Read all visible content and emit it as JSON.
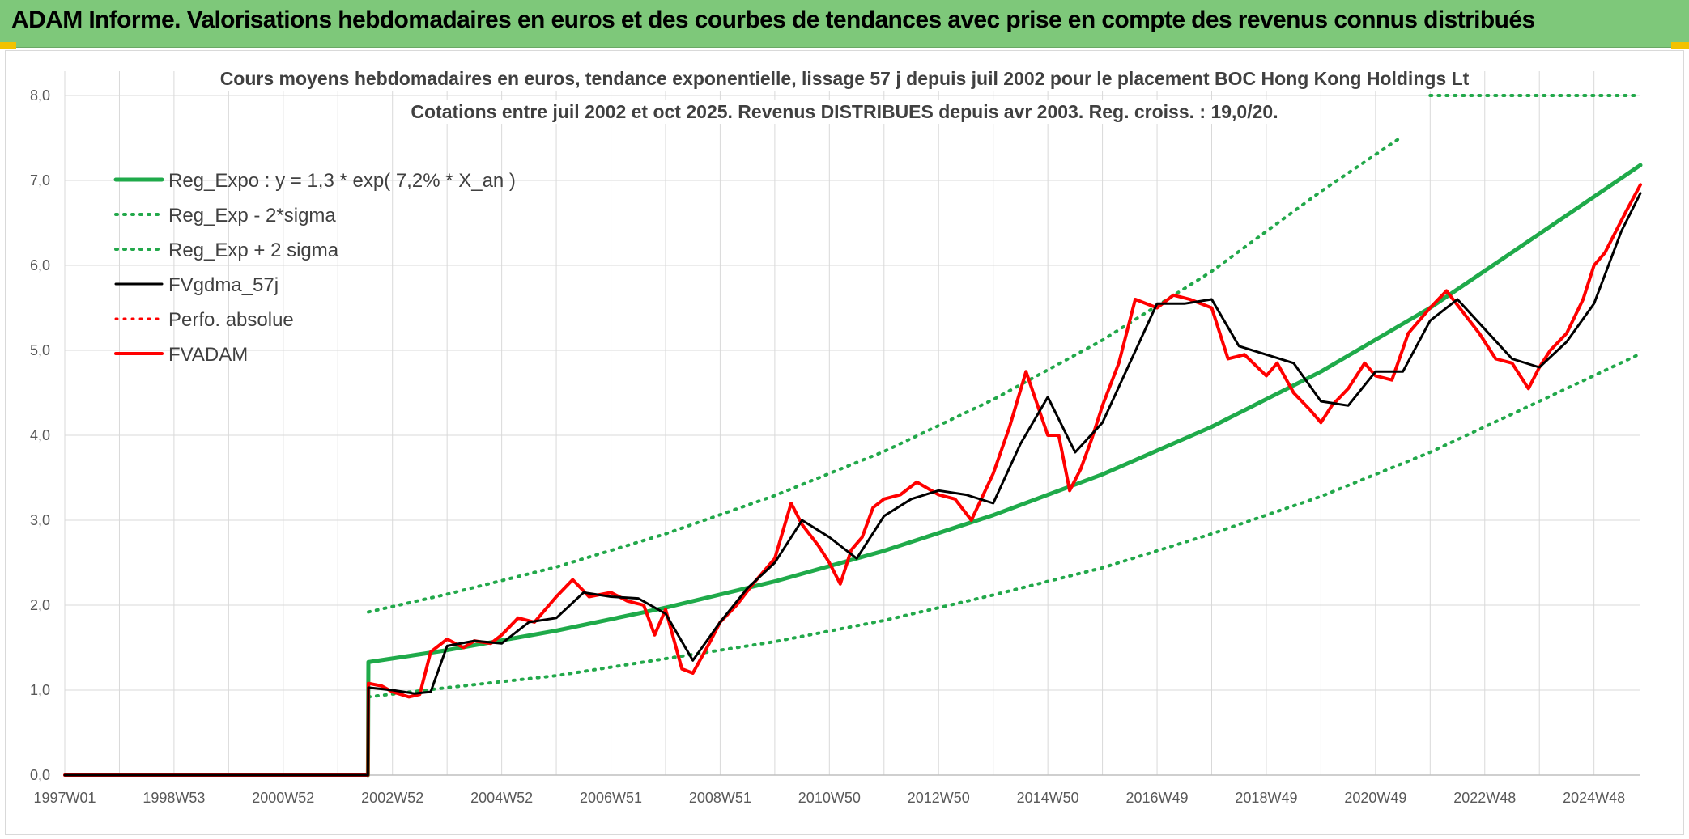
{
  "banner": {
    "title": "ADAM Informe. Valorisations hebdomadaires en euros et des courbes de tendances avec prise en compte des revenus connus distribués"
  },
  "colors": {
    "banner_bg": "#7ec87a",
    "reg_green": "#1faa4a",
    "band_green": "#22a84a",
    "smooth_black": "#000000",
    "price_red": "#ff0000",
    "grid": "#d9d9d9"
  },
  "chart_data": {
    "type": "line",
    "title": [
      "Cours moyens hebdomadaires en euros, tendance exponentielle, lissage 57 j depuis juil 2002 pour le placement BOC Hong Kong Holdings Lt",
      "Cotations entre juil 2002 et oct 2025. Revenus DISTRIBUES depuis avr 2003. Reg. croiss. : 19,0/20."
    ],
    "xlabel": "",
    "ylabel": "",
    "ylim": [
      0,
      8
    ],
    "xlim": [
      1997.0,
      2025.85
    ],
    "grid": true,
    "legend_position": "top-left",
    "y_ticks": [
      "0,0",
      "1,0",
      "2,0",
      "3,0",
      "4,0",
      "5,0",
      "6,0",
      "7,0",
      "8,0"
    ],
    "x_ticks": [
      {
        "label": "1997W01",
        "x": 1997.0
      },
      {
        "label": "1998W53",
        "x": 1999.0
      },
      {
        "label": "2000W52",
        "x": 2001.0
      },
      {
        "label": "2002W52",
        "x": 2003.0
      },
      {
        "label": "2004W52",
        "x": 2005.0
      },
      {
        "label": "2006W51",
        "x": 2007.0
      },
      {
        "label": "2008W51",
        "x": 2009.0
      },
      {
        "label": "2010W50",
        "x": 2011.0
      },
      {
        "label": "2012W50",
        "x": 2013.0
      },
      {
        "label": "2014W50",
        "x": 2015.0
      },
      {
        "label": "2016W49",
        "x": 2017.0
      },
      {
        "label": "2018W49",
        "x": 2019.0
      },
      {
        "label": "2020W49",
        "x": 2021.0
      },
      {
        "label": "2022W48",
        "x": 2023.0
      },
      {
        "label": "2024W48",
        "x": 2025.0
      }
    ],
    "series": [
      {
        "name": "Reg_Expo : y = 1,3 * exp( 7,2% *  X_an )",
        "style": "solid",
        "color": "#1faa4a",
        "width": 5,
        "x": [
          2002.55,
          2002.56,
          2004,
          2006,
          2008,
          2010,
          2012,
          2014,
          2016,
          2018,
          2020,
          2022,
          2024,
          2025.85
        ],
        "y": [
          0.0,
          1.33,
          1.47,
          1.7,
          1.97,
          2.28,
          2.64,
          3.06,
          3.54,
          4.1,
          4.75,
          5.5,
          6.37,
          7.18
        ]
      },
      {
        "name": "Reg_Exp - 2*sigma",
        "style": "dotted",
        "color": "#22a84a",
        "width": 4,
        "x": [
          2002.56,
          2004,
          2006,
          2008,
          2010,
          2012,
          2014,
          2016,
          2018,
          2020,
          2022,
          2024,
          2025.85
        ],
        "y": [
          0.92,
          1.03,
          1.17,
          1.37,
          1.57,
          1.82,
          2.12,
          2.44,
          2.84,
          3.28,
          3.8,
          4.4,
          4.96
        ]
      },
      {
        "name": "Reg_Exp + 2 sigma",
        "style": "dotted",
        "color": "#22a84a",
        "width": 4,
        "x": [
          2002.56,
          2004,
          2006,
          2008,
          2010,
          2012,
          2014,
          2016,
          2018,
          2020,
          2021.45
        ],
        "y": [
          1.92,
          2.13,
          2.45,
          2.84,
          3.29,
          3.81,
          4.42,
          5.12,
          5.93,
          6.87,
          7.5
        ],
        "x2": [
          2022.0,
          2025.85
        ],
        "y2": [
          8.0,
          8.0
        ]
      },
      {
        "name": "FVgdma_57j",
        "style": "solid",
        "color": "#000000",
        "width": 3,
        "x": [
          1997.0,
          2002.55,
          2002.56,
          2003.0,
          2003.4,
          2003.7,
          2004.0,
          2004.5,
          2005.0,
          2005.5,
          2006.0,
          2006.5,
          2007.0,
          2007.5,
          2008.0,
          2008.5,
          2009.0,
          2009.5,
          2010.0,
          2010.5,
          2011.0,
          2011.5,
          2012.0,
          2012.5,
          2013.0,
          2013.5,
          2014.0,
          2014.5,
          2015.0,
          2015.5,
          2016.0,
          2016.5,
          2017.0,
          2017.5,
          2018.0,
          2018.5,
          2019.0,
          2019.5,
          2020.0,
          2020.5,
          2021.0,
          2021.5,
          2022.0,
          2022.5,
          2023.0,
          2023.5,
          2024.0,
          2024.5,
          2025.0,
          2025.5,
          2025.85
        ],
        "y": [
          0.0,
          0.0,
          1.03,
          1.0,
          0.96,
          0.98,
          1.52,
          1.58,
          1.55,
          1.8,
          1.85,
          2.15,
          2.1,
          2.08,
          1.9,
          1.35,
          1.8,
          2.2,
          2.5,
          3.0,
          2.8,
          2.55,
          3.05,
          3.25,
          3.35,
          3.3,
          3.2,
          3.9,
          4.45,
          3.8,
          4.15,
          4.85,
          5.55,
          5.55,
          5.6,
          5.05,
          4.95,
          4.85,
          4.4,
          4.35,
          4.75,
          4.75,
          5.35,
          5.6,
          5.25,
          4.9,
          4.8,
          5.1,
          5.55,
          6.4,
          6.85
        ]
      },
      {
        "name": "Perfo. absolue",
        "style": "dotted",
        "color": "#ff0000",
        "width": 3,
        "x": [],
        "y": []
      },
      {
        "name": "FVADAM",
        "style": "solid",
        "color": "#ff0000",
        "width": 4,
        "x": [
          1997.0,
          2002.55,
          2002.56,
          2002.8,
          2003.0,
          2003.3,
          2003.5,
          2003.7,
          2004.0,
          2004.3,
          2004.5,
          2004.8,
          2005.0,
          2005.3,
          2005.6,
          2006.0,
          2006.3,
          2006.6,
          2007.0,
          2007.3,
          2007.6,
          2007.8,
          2008.0,
          2008.3,
          2008.5,
          2008.8,
          2009.0,
          2009.3,
          2009.6,
          2010.0,
          2010.3,
          2010.5,
          2010.8,
          2011.0,
          2011.2,
          2011.4,
          2011.6,
          2011.8,
          2012.0,
          2012.3,
          2012.6,
          2013.0,
          2013.3,
          2013.6,
          2014.0,
          2014.3,
          2014.6,
          2015.0,
          2015.2,
          2015.4,
          2015.6,
          2015.8,
          2016.0,
          2016.3,
          2016.6,
          2017.0,
          2017.3,
          2017.6,
          2018.0,
          2018.3,
          2018.6,
          2019.0,
          2019.2,
          2019.5,
          2019.8,
          2020.0,
          2020.2,
          2020.5,
          2020.8,
          2021.0,
          2021.3,
          2021.6,
          2022.0,
          2022.3,
          2022.6,
          2022.9,
          2023.2,
          2023.5,
          2023.8,
          2024.0,
          2024.2,
          2024.5,
          2024.8,
          2025.0,
          2025.2,
          2025.4,
          2025.6,
          2025.85
        ],
        "y": [
          0.0,
          0.0,
          1.08,
          1.05,
          0.98,
          0.92,
          0.95,
          1.45,
          1.6,
          1.5,
          1.58,
          1.55,
          1.65,
          1.85,
          1.8,
          2.1,
          2.3,
          2.1,
          2.15,
          2.05,
          2.0,
          1.65,
          1.95,
          1.25,
          1.2,
          1.55,
          1.8,
          2.0,
          2.25,
          2.55,
          3.2,
          2.95,
          2.7,
          2.5,
          2.25,
          2.65,
          2.8,
          3.15,
          3.25,
          3.3,
          3.45,
          3.3,
          3.25,
          3.0,
          3.55,
          4.1,
          4.75,
          4.0,
          4.0,
          3.35,
          3.6,
          3.95,
          4.35,
          4.85,
          5.6,
          5.5,
          5.65,
          5.6,
          5.5,
          4.9,
          4.95,
          4.7,
          4.85,
          4.5,
          4.3,
          4.15,
          4.35,
          4.55,
          4.85,
          4.7,
          4.65,
          5.2,
          5.5,
          5.7,
          5.45,
          5.2,
          4.9,
          4.85,
          4.55,
          4.8,
          5.0,
          5.2,
          5.6,
          6.0,
          6.15,
          6.4,
          6.65,
          6.95
        ]
      }
    ]
  }
}
